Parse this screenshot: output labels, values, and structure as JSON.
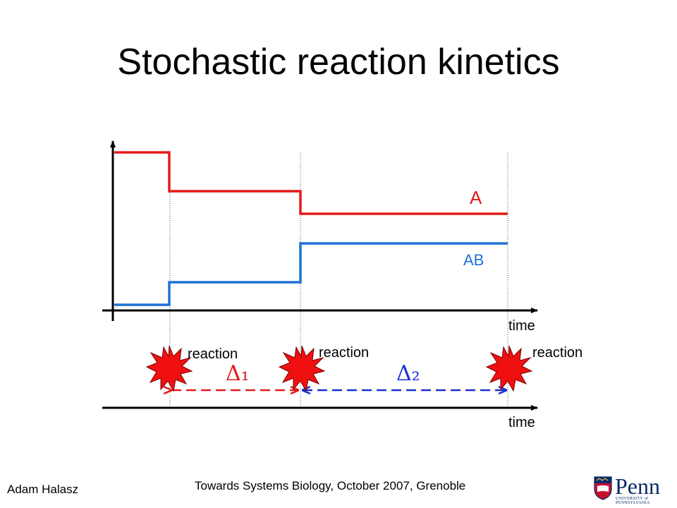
{
  "title": "Stochastic reaction kinetics",
  "series": {
    "a_label": "A",
    "ab_label": "AB",
    "a_color": "#e41a1a",
    "ab_color": "#1f72d4"
  },
  "axes": {
    "upper_time_label": "time",
    "lower_time_label": "time"
  },
  "reactions": {
    "labels": [
      "reaction",
      "reaction",
      "reaction"
    ],
    "burst_icon": "explosion-burst-icon"
  },
  "intervals": {
    "delta1": "Δ₁",
    "delta2": "Δ₂",
    "delta1_color": "#e41a1a",
    "delta2_color": "#1a2ed1"
  },
  "footer": {
    "author": "Adam Halasz",
    "event": "Towards Systems Biology, October 2007, Grenoble"
  },
  "logo": {
    "text": "Penn",
    "subtext": "UNIVERSITY of PENNSYLVANIA",
    "shield_icon": "penn-shield-icon"
  }
}
